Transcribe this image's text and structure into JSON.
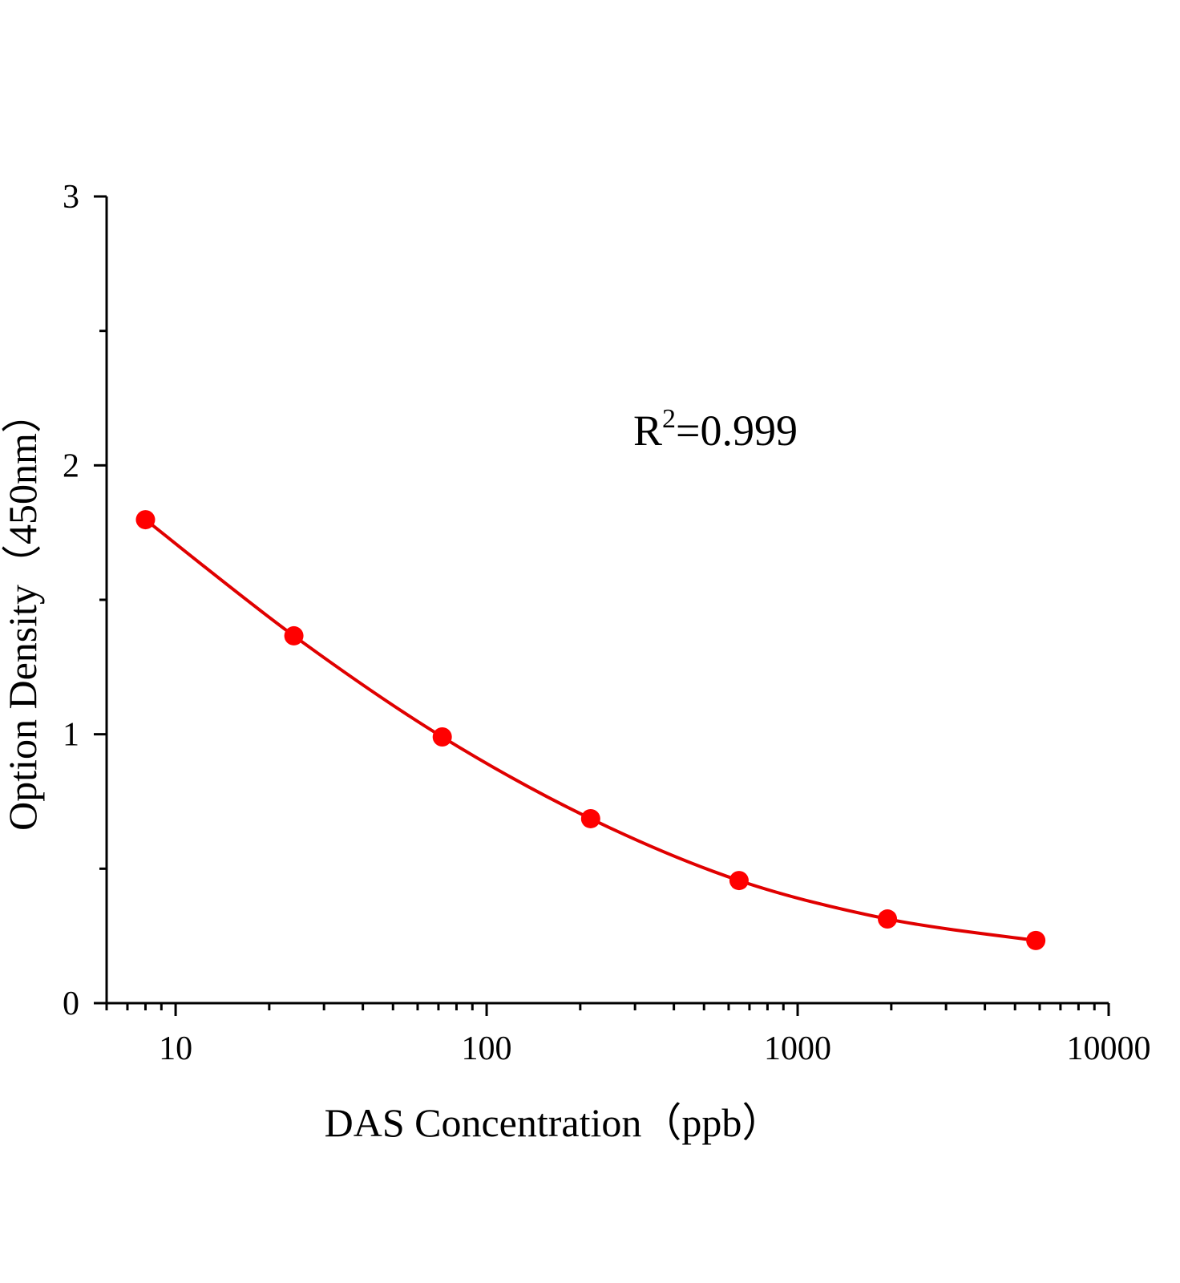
{
  "chart_data": {
    "type": "scatter",
    "x_label": "DAS Concentration（ppb）",
    "y_label": "Option Density（450nm）",
    "annotation": {
      "base": "R",
      "superscript": "2",
      "text": "=0.999"
    },
    "x_log": true,
    "xlim": [
      6,
      10000
    ],
    "xticks": [
      10,
      100,
      1000,
      10000
    ],
    "xminorticks": [
      6,
      7,
      8,
      9,
      20,
      30,
      40,
      50,
      60,
      70,
      80,
      90,
      200,
      300,
      400,
      500,
      600,
      700,
      800,
      900,
      2000,
      3000,
      4000,
      5000,
      6000,
      7000,
      8000,
      9000
    ],
    "ylim": [
      0,
      3
    ],
    "yticks": [
      0,
      1,
      2,
      3
    ],
    "yminorticks": [
      0.5,
      1.5,
      2.5
    ],
    "series": [
      {
        "color": "#ff0000",
        "line_color": "#e00000",
        "x": [
          8,
          24,
          72,
          216,
          648,
          1944,
          5832
        ],
        "values": [
          1.798,
          1.366,
          0.99,
          0.686,
          0.456,
          0.313,
          0.233
        ]
      }
    ]
  }
}
